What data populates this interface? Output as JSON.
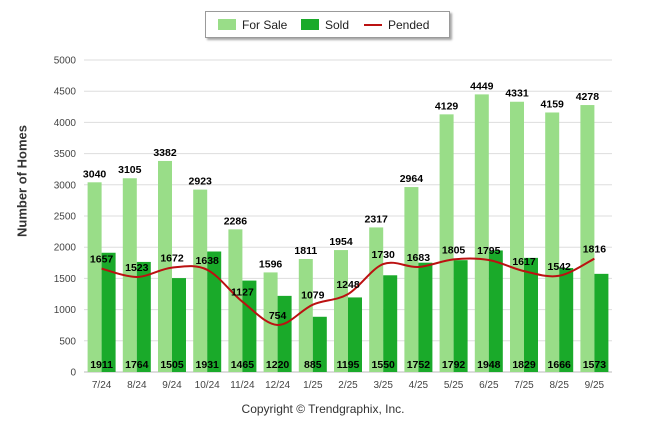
{
  "chart_data": {
    "type": "bar",
    "categories": [
      "7/24",
      "8/24",
      "9/24",
      "10/24",
      "11/24",
      "12/24",
      "1/25",
      "2/25",
      "3/25",
      "4/25",
      "5/25",
      "6/25",
      "7/25",
      "8/25",
      "9/25"
    ],
    "series": [
      {
        "name": "For Sale",
        "type": "bar",
        "color": "#99dd88",
        "values": [
          3040,
          3105,
          3382,
          2923,
          2286,
          1596,
          1811,
          1954,
          2317,
          2964,
          4129,
          4449,
          4331,
          4159,
          4278
        ]
      },
      {
        "name": "Sold",
        "type": "bar",
        "color": "#1aaa2a",
        "values": [
          1911,
          1764,
          1505,
          1931,
          1465,
          1220,
          885,
          1195,
          1550,
          1752,
          1792,
          1948,
          1829,
          1666,
          1573
        ]
      },
      {
        "name": "Pended",
        "type": "line",
        "color": "#bb1111",
        "values": [
          1657,
          1523,
          1672,
          1638,
          1127,
          754,
          1079,
          1248,
          1730,
          1683,
          1805,
          1795,
          1617,
          1542,
          1816
        ]
      }
    ],
    "ylabel": "Number of Homes",
    "ylim": [
      0,
      5000
    ],
    "yticks": [
      0,
      500,
      1000,
      1500,
      2000,
      2500,
      3000,
      3500,
      4000,
      4500,
      5000
    ],
    "grid": true,
    "legend_position": "top-center"
  },
  "credit": "Copyright © Trendgraphix, Inc."
}
